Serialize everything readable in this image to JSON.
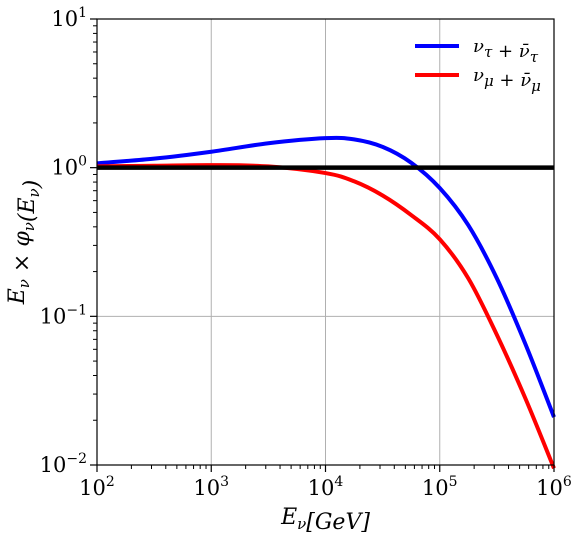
{
  "chart_data": {
    "type": "line",
    "x_scale": "log",
    "y_scale": "log",
    "xlabel": "E_ν[GeV]",
    "ylabel": "E_ν × φ_ν(E_ν)",
    "xlim": [
      100,
      1000000
    ],
    "ylim": [
      0.01,
      10
    ],
    "grid": true,
    "legend_position": "top-right",
    "x_ticks": [
      {
        "base": "10",
        "exp": "2",
        "value": 100
      },
      {
        "base": "10",
        "exp": "3",
        "value": 1000
      },
      {
        "base": "10",
        "exp": "4",
        "value": 10000
      },
      {
        "base": "10",
        "exp": "5",
        "value": 100000
      },
      {
        "base": "10",
        "exp": "6",
        "value": 1000000
      }
    ],
    "y_ticks": [
      {
        "base": "10",
        "exp": "−2",
        "value": 0.01
      },
      {
        "base": "10",
        "exp": "−1",
        "value": 0.1
      },
      {
        "base": "10",
        "exp": "0",
        "value": 1
      },
      {
        "base": "10",
        "exp": "1",
        "value": 10
      }
    ],
    "reference_line": {
      "y": 1.0,
      "color": "#000000"
    },
    "series": [
      {
        "name": "ν_τ + ν̄_τ",
        "color": "#0000ff",
        "x": [
          100,
          316,
          1000,
          3162,
          10000,
          17783,
          31623,
          56234,
          100000,
          177828,
          316228,
          562341,
          1000000
        ],
        "y": [
          1.07,
          1.15,
          1.28,
          1.46,
          1.58,
          1.55,
          1.38,
          1.08,
          0.73,
          0.41,
          0.18,
          0.065,
          0.021
        ]
      },
      {
        "name": "ν_μ + ν̄_μ",
        "color": "#ff0000",
        "x": [
          100,
          316,
          1000,
          3162,
          10000,
          17783,
          31623,
          56234,
          100000,
          177828,
          316228,
          562341,
          1000000
        ],
        "y": [
          1.02,
          1.03,
          1.04,
          1.02,
          0.92,
          0.81,
          0.65,
          0.48,
          0.33,
          0.18,
          0.075,
          0.028,
          0.0095
        ]
      }
    ]
  }
}
